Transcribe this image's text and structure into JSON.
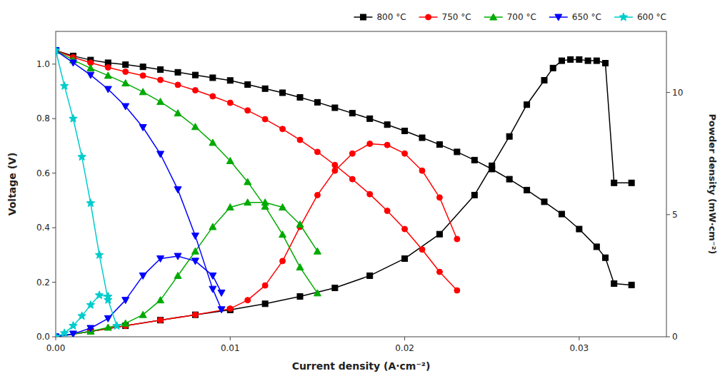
{
  "chart_data": {
    "type": "line",
    "xlabel": "Current density (A·cm⁻²)",
    "ylabel": "Voltage (V)",
    "y2label": "Powder density (mW·cm⁻²)",
    "xlim": [
      0,
      0.035
    ],
    "ylim": [
      0.0,
      1.12
    ],
    "y2lim": [
      0,
      12.5
    ],
    "xticks": [
      {
        "value": 0.0,
        "label": "0.00"
      },
      0.01,
      0.02,
      0.03
    ],
    "yticks": [
      {
        "value": 0.0,
        "label": "0.0"
      },
      0.2,
      0.4,
      0.6,
      0.8,
      {
        "value": 1.0,
        "label": "1.0"
      }
    ],
    "y2ticks": [
      0,
      5,
      10
    ],
    "grid": false,
    "legend": "top-right",
    "series": [
      {
        "name": "800 °C",
        "color": "#000000",
        "marker": "square",
        "x": [
          0.0,
          0.001,
          0.002,
          0.003,
          0.004,
          0.005,
          0.006,
          0.007,
          0.008,
          0.009,
          0.01,
          0.011,
          0.012,
          0.013,
          0.014,
          0.015,
          0.016,
          0.017,
          0.018,
          0.019,
          0.02,
          0.021,
          0.022,
          0.023,
          0.024,
          0.025,
          0.026,
          0.027,
          0.028,
          0.029,
          0.03,
          0.031,
          0.0315,
          0.032,
          0.033
        ],
        "values": [
          1.05,
          1.03,
          1.015,
          1.005,
          0.998,
          0.99,
          0.98,
          0.97,
          0.96,
          0.95,
          0.94,
          0.925,
          0.91,
          0.895,
          0.878,
          0.86,
          0.84,
          0.82,
          0.8,
          0.778,
          0.755,
          0.73,
          0.705,
          0.678,
          0.648,
          0.615,
          0.578,
          0.538,
          0.495,
          0.45,
          0.395,
          0.33,
          0.29,
          0.195,
          0.19
        ]
      },
      {
        "color": "#000000",
        "marker": "square",
        "axis": "y2",
        "x": [
          0.0,
          0.002,
          0.004,
          0.006,
          0.008,
          0.01,
          0.012,
          0.014,
          0.016,
          0.018,
          0.02,
          0.022,
          0.024,
          0.025,
          0.026,
          0.027,
          0.028,
          0.0285,
          0.029,
          0.0295,
          0.03,
          0.0305,
          0.031,
          0.0315,
          0.032,
          0.033
        ],
        "values": [
          0.0,
          0.22,
          0.45,
          0.68,
          0.9,
          1.1,
          1.35,
          1.65,
          2.0,
          2.5,
          3.2,
          4.2,
          5.8,
          7.0,
          8.2,
          9.5,
          10.5,
          11.0,
          11.3,
          11.35,
          11.35,
          11.3,
          11.3,
          11.2,
          6.3,
          6.3
        ]
      },
      {
        "name": "750 °C",
        "color": "#ff0000",
        "marker": "circle",
        "x": [
          0.0,
          0.001,
          0.002,
          0.003,
          0.004,
          0.005,
          0.006,
          0.007,
          0.008,
          0.009,
          0.01,
          0.011,
          0.012,
          0.013,
          0.014,
          0.015,
          0.016,
          0.017,
          0.018,
          0.019,
          0.02,
          0.021,
          0.022,
          0.023
        ],
        "values": [
          1.05,
          1.025,
          1.005,
          0.988,
          0.972,
          0.958,
          0.942,
          0.924,
          0.904,
          0.882,
          0.858,
          0.83,
          0.798,
          0.762,
          0.722,
          0.678,
          0.63,
          0.578,
          0.523,
          0.462,
          0.395,
          0.32,
          0.238,
          0.17
        ]
      },
      {
        "color": "#ff0000",
        "marker": "circle",
        "axis": "y2",
        "x": [
          0.0,
          0.002,
          0.004,
          0.006,
          0.008,
          0.01,
          0.011,
          0.012,
          0.013,
          0.014,
          0.015,
          0.016,
          0.017,
          0.018,
          0.019,
          0.02,
          0.021,
          0.022,
          0.023
        ],
        "values": [
          0.0,
          0.22,
          0.45,
          0.68,
          0.9,
          1.15,
          1.5,
          2.1,
          3.1,
          4.5,
          5.8,
          6.8,
          7.5,
          7.9,
          7.85,
          7.5,
          6.8,
          5.7,
          4.0
        ]
      },
      {
        "name": "700 °C",
        "color": "#00aa00",
        "marker": "triangle-up",
        "x": [
          0.0,
          0.001,
          0.002,
          0.003,
          0.004,
          0.005,
          0.006,
          0.007,
          0.008,
          0.009,
          0.01,
          0.011,
          0.012,
          0.013,
          0.014,
          0.015
        ],
        "values": [
          1.05,
          1.015,
          0.985,
          0.958,
          0.93,
          0.898,
          0.862,
          0.82,
          0.77,
          0.712,
          0.645,
          0.568,
          0.478,
          0.375,
          0.255,
          0.16
        ]
      },
      {
        "color": "#00aa00",
        "marker": "triangle-up",
        "axis": "y2",
        "x": [
          0.0,
          0.002,
          0.003,
          0.004,
          0.005,
          0.006,
          0.007,
          0.008,
          0.009,
          0.01,
          0.011,
          0.012,
          0.013,
          0.014,
          0.015
        ],
        "values": [
          0.0,
          0.22,
          0.38,
          0.55,
          0.9,
          1.5,
          2.5,
          3.5,
          4.5,
          5.3,
          5.5,
          5.5,
          5.3,
          4.6,
          3.5
        ]
      },
      {
        "name": "650 °C",
        "color": "#0000ff",
        "marker": "triangle-down",
        "x": [
          0.0,
          0.001,
          0.002,
          0.003,
          0.004,
          0.005,
          0.006,
          0.007,
          0.008,
          0.009,
          0.0095
        ],
        "values": [
          1.05,
          1.005,
          0.96,
          0.908,
          0.845,
          0.768,
          0.67,
          0.54,
          0.37,
          0.175,
          0.1
        ]
      },
      {
        "color": "#0000ff",
        "marker": "triangle-down",
        "axis": "y2",
        "x": [
          0.0,
          0.001,
          0.002,
          0.003,
          0.004,
          0.005,
          0.006,
          0.007,
          0.008,
          0.009,
          0.0095
        ],
        "values": [
          0.0,
          0.12,
          0.35,
          0.75,
          1.5,
          2.5,
          3.2,
          3.3,
          3.1,
          2.5,
          1.8
        ]
      },
      {
        "name": "600 °C",
        "color": "#00cccc",
        "marker": "star",
        "x": [
          0.0,
          0.0005,
          0.001,
          0.0015,
          0.002,
          0.0025,
          0.003,
          0.0035
        ],
        "values": [
          1.05,
          0.92,
          0.8,
          0.66,
          0.49,
          0.3,
          0.135,
          0.04
        ]
      },
      {
        "color": "#00cccc",
        "marker": "star",
        "axis": "y2",
        "x": [
          0.0,
          0.0005,
          0.001,
          0.0015,
          0.002,
          0.0025,
          0.003
        ],
        "values": [
          0.0,
          0.15,
          0.45,
          0.85,
          1.3,
          1.7,
          1.65
        ]
      }
    ]
  }
}
